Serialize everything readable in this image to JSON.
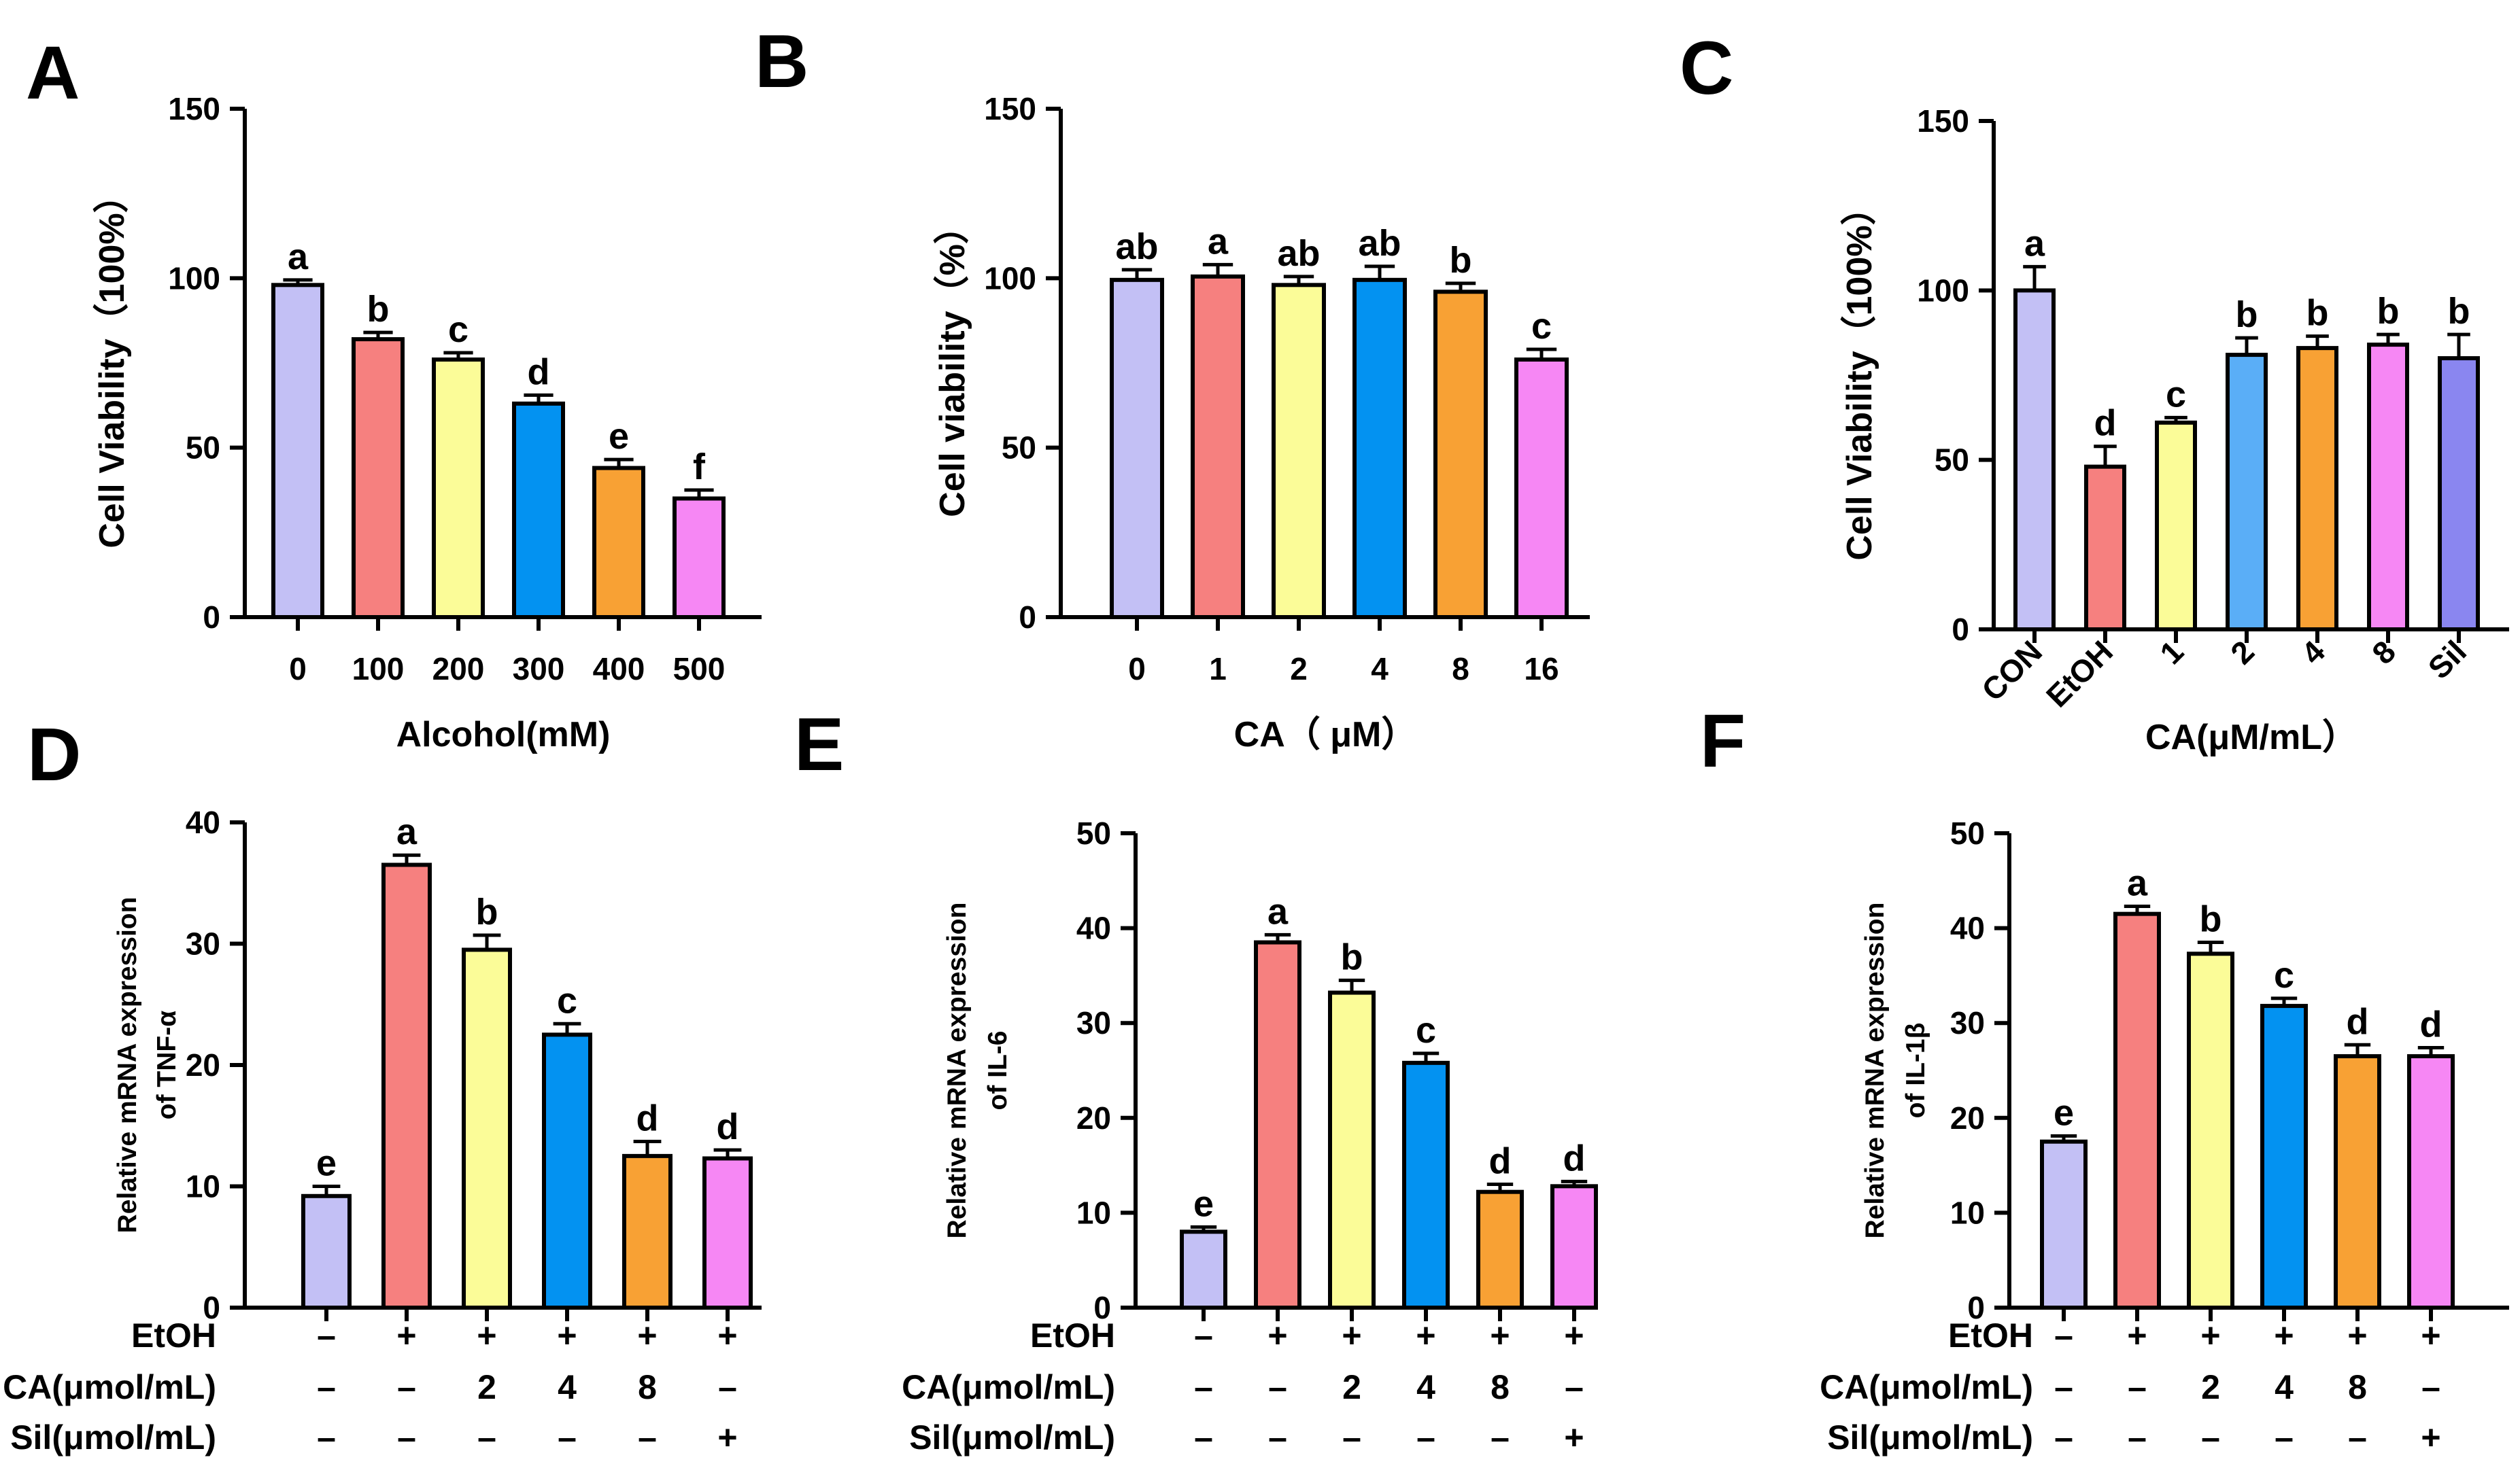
{
  "figure_title": "",
  "chart_data": [
    {
      "id": "A",
      "type": "bar",
      "panel_label": "A",
      "xlabel": "Alcohol(mM)",
      "ylabel": "Cell Viability（100%）",
      "ylim": [
        0,
        150
      ],
      "yticks": [
        0,
        50,
        100,
        150
      ],
      "categories": [
        "0",
        "100",
        "200",
        "300",
        "400",
        "500"
      ],
      "values": [
        98,
        82,
        76,
        63,
        44,
        35
      ],
      "errors": [
        1.5,
        2,
        2,
        2.5,
        2.5,
        2.5
      ],
      "letters": [
        "a",
        "b",
        "c",
        "d",
        "e",
        "f"
      ],
      "colors": [
        "#c3c0f5",
        "#f6807f",
        "#fbfc98",
        "#0392f1",
        "#f8a134",
        "#f687f4"
      ]
    },
    {
      "id": "B",
      "type": "bar",
      "panel_label": "B",
      "xlabel": "CA（ μM）",
      "ylabel": "Cell viability（%）",
      "ylim": [
        0,
        150
      ],
      "yticks": [
        0,
        50,
        100,
        150
      ],
      "categories": [
        "0",
        "1",
        "2",
        "4",
        "8",
        "16"
      ],
      "values": [
        99.5,
        100.5,
        98,
        99.5,
        96,
        76
      ],
      "errors": [
        3,
        3.5,
        2.5,
        4,
        2.5,
        3
      ],
      "letters": [
        "ab",
        "a",
        "ab",
        "ab",
        "b",
        "c"
      ],
      "colors": [
        "#c3c0f5",
        "#f6807f",
        "#fbfc98",
        "#0392f1",
        "#f8a134",
        "#f687f4"
      ]
    },
    {
      "id": "C",
      "type": "bar",
      "panel_label": "C",
      "xlabel": "CA(μM/mL）",
      "ylabel": "Cell Viability（100%）",
      "ylim": [
        0,
        150
      ],
      "yticks": [
        0,
        50,
        100,
        150
      ],
      "categories": [
        "CON",
        "EtOH",
        "1",
        "2",
        "4",
        "8",
        "Sil"
      ],
      "values": [
        100,
        48,
        61,
        81,
        83,
        84,
        80
      ],
      "errors": [
        7,
        6,
        1.5,
        5,
        3.5,
        3,
        7
      ],
      "letters": [
        "a",
        "d",
        "c",
        "b",
        "b",
        "b",
        "b"
      ],
      "colors": [
        "#c3c0f5",
        "#f6807f",
        "#fbfc98",
        "#5aaef7",
        "#f8a134",
        "#f687f4",
        "#8a86f0"
      ]
    },
    {
      "id": "D",
      "type": "bar",
      "panel_label": "D",
      "ylabel_line1": "Relative mRNA expression",
      "ylabel_line2": "of TNF-α",
      "ylim": [
        0,
        40
      ],
      "yticks": [
        0,
        10,
        20,
        30,
        40
      ],
      "values": [
        9.2,
        36.5,
        29.5,
        22.5,
        12.5,
        12.3
      ],
      "errors": [
        0.8,
        0.8,
        1.2,
        0.9,
        1.2,
        0.7
      ],
      "letters": [
        "e",
        "a",
        "b",
        "c",
        "d",
        "d"
      ],
      "colors": [
        "#c3c0f5",
        "#f6807f",
        "#fbfc98",
        "#0392f1",
        "#f8a134",
        "#f687f4"
      ],
      "rows": [
        {
          "label": "EtOH",
          "cells": [
            "–",
            "+",
            "+",
            "+",
            "+",
            "+"
          ]
        },
        {
          "label": "CA(μmol/mL)",
          "cells": [
            "–",
            "–",
            "2",
            "4",
            "8",
            "–"
          ]
        },
        {
          "label": "Sil(μmol/mL)",
          "cells": [
            "–",
            "–",
            "–",
            "–",
            "–",
            "+"
          ]
        }
      ]
    },
    {
      "id": "E",
      "type": "bar",
      "panel_label": "E",
      "ylabel_line1": "Relative mRNA expression",
      "ylabel_line2": "of IL-6",
      "ylim": [
        0,
        50
      ],
      "yticks": [
        0,
        10,
        20,
        30,
        40,
        50
      ],
      "values": [
        8.0,
        38.5,
        33.2,
        25.8,
        12.2,
        12.8
      ],
      "errors": [
        0.5,
        0.8,
        1.3,
        1.0,
        0.8,
        0.5
      ],
      "letters": [
        "e",
        "a",
        "b",
        "c",
        "d",
        "d"
      ],
      "colors": [
        "#c3c0f5",
        "#f6807f",
        "#fbfc98",
        "#0392f1",
        "#f8a134",
        "#f687f4"
      ],
      "rows": [
        {
          "label": "EtOH",
          "cells": [
            "–",
            "+",
            "+",
            "+",
            "+",
            "+"
          ]
        },
        {
          "label": "CA(μmol/mL)",
          "cells": [
            "–",
            "–",
            "2",
            "4",
            "8",
            "–"
          ]
        },
        {
          "label": "Sil(μmol/mL)",
          "cells": [
            "–",
            "–",
            "–",
            "–",
            "–",
            "+"
          ]
        }
      ]
    },
    {
      "id": "F",
      "type": "bar",
      "panel_label": "F",
      "ylabel_line1": "Relative mRNA expression",
      "ylabel_line2": "of IL-1β",
      "ylim": [
        0,
        50
      ],
      "yticks": [
        0,
        10,
        20,
        30,
        40,
        50
      ],
      "values": [
        17.5,
        41.5,
        37.3,
        31.8,
        26.5,
        26.5
      ],
      "errors": [
        0.6,
        0.8,
        1.2,
        0.8,
        1.2,
        0.9
      ],
      "letters": [
        "e",
        "a",
        "b",
        "c",
        "d",
        "d"
      ],
      "colors": [
        "#c3c0f5",
        "#f6807f",
        "#fbfc98",
        "#0392f1",
        "#f8a134",
        "#f687f4"
      ],
      "rows": [
        {
          "label": "EtOH",
          "cells": [
            "–",
            "+",
            "+",
            "+",
            "+",
            "+"
          ]
        },
        {
          "label": "CA(μmol/mL)",
          "cells": [
            "–",
            "–",
            "2",
            "4",
            "8",
            "–"
          ]
        },
        {
          "label": "Sil(μmol/mL)",
          "cells": [
            "–",
            "–",
            "–",
            "–",
            "–",
            "+"
          ]
        }
      ]
    }
  ]
}
